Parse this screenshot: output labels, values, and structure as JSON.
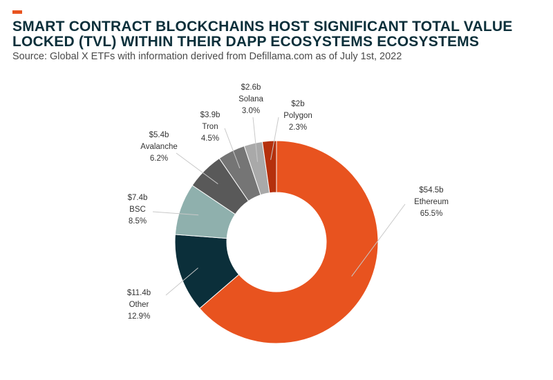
{
  "header": {
    "title": "SMART CONTRACT BLOCKCHAINS HOST SIGNIFICANT TOTAL VALUE LOCKED (TVL) WITHIN THEIR DAPP ECOSYSTEMS ECOSYSTEMS",
    "source": "Source: Global X ETFs with information derived from Defillama.com as of July 1st, 2022",
    "accent_color": "#e8531f"
  },
  "chart_data": {
    "type": "pie",
    "style": "donut",
    "title": "SMART CONTRACT BLOCKCHAINS HOST SIGNIFICANT TOTAL VALUE LOCKED (TVL) WITHIN THEIR DAPP ECOSYSTEMS ECOSYSTEMS",
    "subtitle": "Source: Global X ETFs with information derived from Defillama.com as of July 1st, 2022",
    "slices": [
      {
        "name": "Ethereum",
        "value": 65.5,
        "amount": "$54.5b",
        "percent": "65.5%",
        "color": "#e8531f"
      },
      {
        "name": "Other",
        "value": 12.9,
        "amount": "$11.4b",
        "percent": "12.9%",
        "color": "#0b2f3a"
      },
      {
        "name": "BSC",
        "value": 8.5,
        "amount": "$7.4b",
        "percent": "8.5%",
        "color": "#8fb0ad"
      },
      {
        "name": "Avalanche",
        "value": 6.2,
        "amount": "$5.4b",
        "percent": "6.2%",
        "color": "#595959"
      },
      {
        "name": "Tron",
        "value": 4.5,
        "amount": "$3.9b",
        "percent": "4.5%",
        "color": "#757575"
      },
      {
        "name": "Solana",
        "value": 3.0,
        "amount": "$2.6b",
        "percent": "3.0%",
        "color": "#a9a9a9"
      },
      {
        "name": "Polygon",
        "value": 2.3,
        "amount": "$2b",
        "percent": "2.3%",
        "color": "#b5300c"
      }
    ]
  }
}
